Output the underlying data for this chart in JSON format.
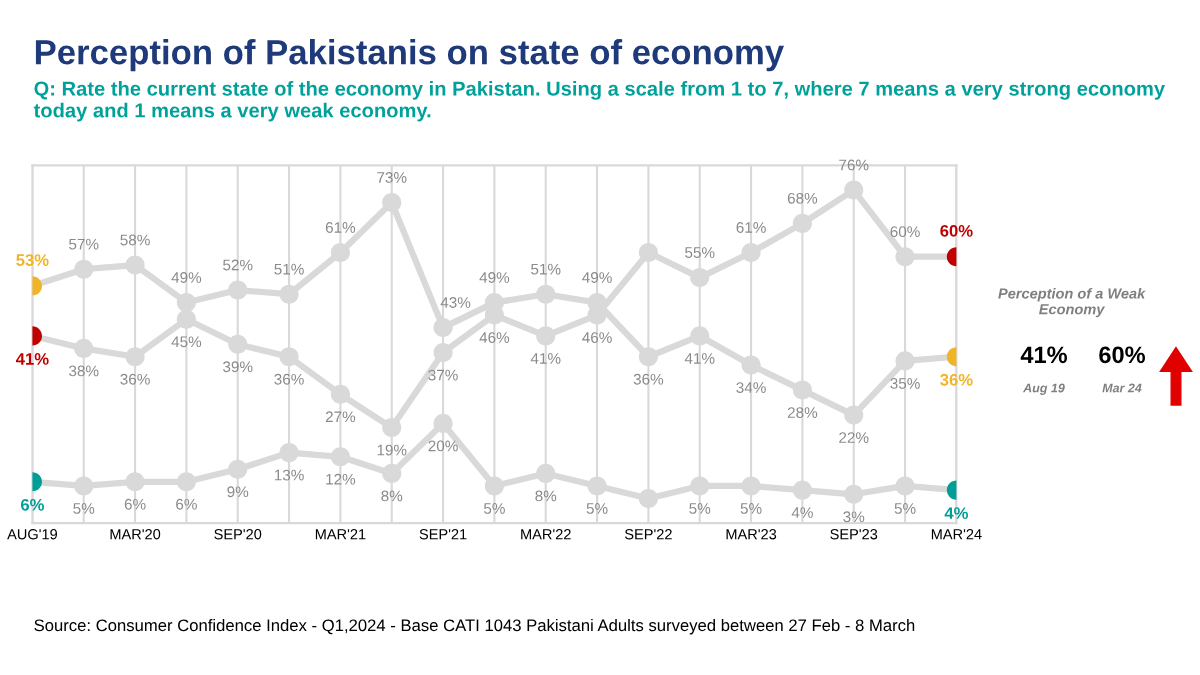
{
  "chart_data": {
    "type": "line",
    "title": "Perception of Pakistanis on state of economy",
    "subtitle": "Q: Rate the current state of the economy in Pakistan. Using a scale from 1 to 7, where 7 means a very strong economy today and 1 means a very weak economy.",
    "categories": [
      "AUG'19",
      null,
      "MAR'20",
      null,
      "SEP'20",
      null,
      "MAR'21",
      null,
      "SEP'21",
      null,
      "MAR'22",
      null,
      "SEP'22",
      null,
      "MAR'23",
      null,
      "SEP'23",
      null,
      "MAR'24"
    ],
    "series": [
      {
        "color": "#d9d9d9",
        "colors": [
          "#c00000",
          "#d9d9d9",
          "#d9d9d9",
          "#d9d9d9",
          "#d9d9d9",
          "#d9d9d9",
          "#d9d9d9",
          "#d9d9d9",
          "#d9d9d9",
          "#d9d9d9",
          "#d9d9d9",
          "#d9d9d9",
          "#d9d9d9",
          "#d9d9d9",
          "#d9d9d9",
          "#d9d9d9",
          "#d9d9d9",
          "#d9d9d9",
          "#c00000"
        ],
        "values": [
          41,
          38,
          36,
          45,
          39,
          36,
          27,
          19,
          37,
          46,
          41,
          46,
          61,
          55,
          61,
          68,
          76,
          60,
          60
        ],
        "value_labels": [
          "41%",
          "38%",
          "36%",
          "45%",
          "39%",
          "36%",
          "27%",
          "19%",
          "37%",
          "46%",
          "41%",
          "46%",
          null,
          "55%",
          "61%",
          "68%",
          "76%",
          "60%",
          "60%"
        ]
      },
      {
        "color": "#d9d9d9",
        "colors": [
          "#f0b429",
          "#d9d9d9",
          "#d9d9d9",
          "#d9d9d9",
          "#d9d9d9",
          "#d9d9d9",
          "#d9d9d9",
          "#d9d9d9",
          "#d9d9d9",
          "#d9d9d9",
          "#d9d9d9",
          "#d9d9d9",
          "#d9d9d9",
          "#d9d9d9",
          "#d9d9d9",
          "#d9d9d9",
          "#d9d9d9",
          "#d9d9d9",
          "#f0b429"
        ],
        "values": [
          53,
          57,
          58,
          49,
          52,
          51,
          61,
          73,
          43,
          49,
          51,
          49,
          36,
          41,
          34,
          28,
          22,
          35,
          36
        ],
        "value_labels": [
          "53%",
          "57%",
          "58%",
          "49%",
          "52%",
          "51%",
          "61%",
          "73%",
          "43%",
          "49%",
          "51%",
          "49%",
          "36%",
          "41%",
          "34%",
          "28%",
          "22%",
          "35%",
          "36%"
        ]
      },
      {
        "color": "#d9d9d9",
        "colors": [
          "#009e96",
          "#d9d9d9",
          "#d9d9d9",
          "#d9d9d9",
          "#d9d9d9",
          "#d9d9d9",
          "#d9d9d9",
          "#d9d9d9",
          "#d9d9d9",
          "#d9d9d9",
          "#d9d9d9",
          "#d9d9d9",
          "#d9d9d9",
          "#d9d9d9",
          "#d9d9d9",
          "#d9d9d9",
          "#d9d9d9",
          "#d9d9d9",
          "#009e96"
        ],
        "values": [
          6,
          5,
          6,
          6,
          9,
          13,
          12,
          8,
          20,
          5,
          8,
          5,
          2,
          5,
          5,
          4,
          3,
          5,
          4
        ],
        "value_labels": [
          "6%",
          "5%",
          "6%",
          "6%",
          "9%",
          "13%",
          "12%",
          "8%",
          "20%",
          "5%",
          "8%",
          "5%",
          null,
          "5%",
          "5%",
          "4%",
          "3%",
          "5%",
          "4%"
        ]
      }
    ],
    "grid": "x",
    "marker": "circle",
    "line_style": "solid",
    "tick_labels": "x",
    "annotations": [
      "Perception of a Weak Economy",
      "41%",
      "Aug 19",
      "60%",
      "Mar 24",
      "Source: Consumer Confidence Index - Q1,2024 - Base CATI 1043 Pakistani Adults surveyed between 27 Feb - 8 March"
    ]
  }
}
